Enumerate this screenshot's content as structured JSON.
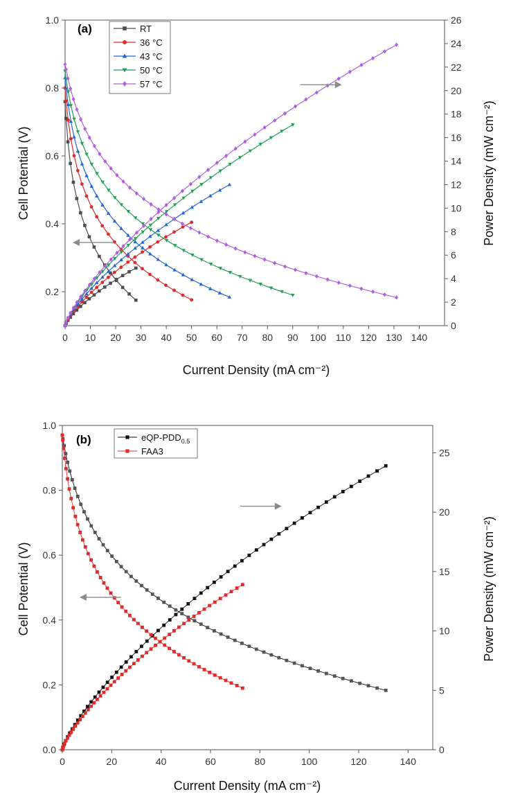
{
  "chart_data": [
    {
      "type": "line",
      "panel_label": "(a)",
      "xlabel": "Current Density (mA cm⁻²)",
      "ylabel_left": "Cell Potential (V)",
      "ylabel_right": "Power Density (mW cm⁻²)",
      "xlim": [
        0,
        150
      ],
      "ylim_left": [
        0.1,
        1.0
      ],
      "ylim_right": [
        0,
        26
      ],
      "xticks": [
        "0",
        "10",
        "20",
        "30",
        "40",
        "50",
        "60",
        "70",
        "80",
        "90",
        "100",
        "110",
        "120",
        "130",
        "140"
      ],
      "yticks_left": [
        "0.2",
        "0.4",
        "0.6",
        "0.8",
        "1.0"
      ],
      "yticks_right": [
        "0",
        "2",
        "4",
        "6",
        "8",
        "10",
        "12",
        "14",
        "16",
        "18",
        "20",
        "22",
        "24",
        "26"
      ],
      "legend_position": "top-left",
      "series": [
        {
          "name": "RT",
          "color": "#4d4d4d",
          "marker": "square",
          "imax": 28,
          "v0": 0.76,
          "vmax": 0.175,
          "pmax": 4.9
        },
        {
          "name": "36 °C",
          "color": "#e02b2b",
          "marker": "circle",
          "imax": 50,
          "v0": 0.8,
          "vmax": 0.176,
          "pmax": 8.8
        },
        {
          "name": "43 °C",
          "color": "#2166d6",
          "marker": "triangle-up",
          "imax": 65,
          "v0": 0.83,
          "vmax": 0.184,
          "pmax": 12.0
        },
        {
          "name": "50 °C",
          "color": "#22a055",
          "marker": "triangle-down",
          "imax": 90,
          "v0": 0.85,
          "vmax": 0.19,
          "pmax": 17.1
        },
        {
          "name": "57 °C",
          "color": "#b25fdf",
          "marker": "diamond",
          "imax": 131,
          "v0": 0.87,
          "vmax": 0.183,
          "pmax": 23.9
        }
      ],
      "annotations": [
        {
          "text": "←",
          "target": "left axis",
          "at_x": 3,
          "at_y": 0.345
        },
        {
          "text": "→",
          "target": "right axis",
          "at_x": 93,
          "at_y": 20.5
        }
      ]
    },
    {
      "type": "line",
      "panel_label": "(b)",
      "xlabel": "Current Density (mA cm⁻²)",
      "ylabel_left": "Cell Potential (V)",
      "ylabel_right": "Power Density (mW cm⁻²)",
      "xlim": [
        0,
        150
      ],
      "ylim_left": [
        0.0,
        1.0
      ],
      "ylim_right": [
        0,
        27.3
      ],
      "xticks": [
        "0",
        "20",
        "40",
        "60",
        "80",
        "100",
        "120",
        "140"
      ],
      "yticks_left": [
        "0.0",
        "0.2",
        "0.4",
        "0.6",
        "0.8",
        "1.0"
      ],
      "yticks_right": [
        "0",
        "5",
        "10",
        "15",
        "20",
        "25"
      ],
      "legend_position": "top-left",
      "series": [
        {
          "name_main": "eQP-PDD",
          "name_sub": "0.5",
          "color": "#111111",
          "marker": "square",
          "imax": 131,
          "v0": 0.97,
          "vmax": 0.183,
          "pmax": 23.9
        },
        {
          "name_main": "FAA3",
          "name_sub": "",
          "color": "#e02b2b",
          "marker": "square",
          "imax": 73,
          "v0": 0.97,
          "vmax": 0.19,
          "pmax": 13.9
        }
      ],
      "annotations": [
        {
          "text": "←",
          "target": "left axis",
          "at_x": 7,
          "at_y": 0.47
        },
        {
          "text": "→",
          "target": "right axis",
          "at_x": 72,
          "at_y": 20.5
        }
      ]
    }
  ]
}
